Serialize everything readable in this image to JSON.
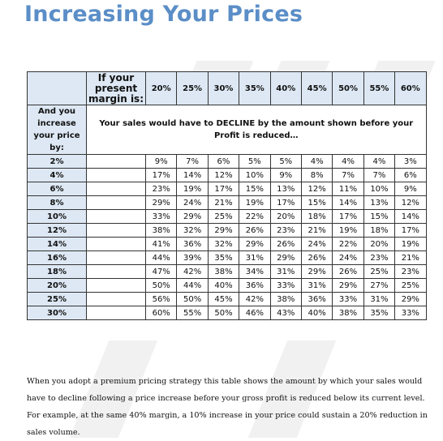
{
  "title": "Increasing Your Prices",
  "table": {
    "margin_header": "If your present margin is:",
    "margins": [
      "20%",
      "25%",
      "30%",
      "35%",
      "40%",
      "45%",
      "50%",
      "55%",
      "60%"
    ],
    "side_header": "And you increase your price by:",
    "message": "Your sales would have to DECLINE by the amount shown before your Profit is reduced…",
    "rows": [
      {
        "increase": "2%",
        "values": [
          "9%",
          "7%",
          "6%",
          "5%",
          "5%",
          "4%",
          "4%",
          "4%",
          "3%"
        ]
      },
      {
        "increase": "4%",
        "values": [
          "17%",
          "14%",
          "12%",
          "10%",
          "9%",
          "8%",
          "7%",
          "7%",
          "6%"
        ]
      },
      {
        "increase": "6%",
        "values": [
          "23%",
          "19%",
          "17%",
          "15%",
          "13%",
          "12%",
          "11%",
          "10%",
          "9%"
        ]
      },
      {
        "increase": "8%",
        "values": [
          "29%",
          "24%",
          "21%",
          "19%",
          "17%",
          "15%",
          "14%",
          "13%",
          "12%"
        ]
      },
      {
        "increase": "10%",
        "values": [
          "33%",
          "29%",
          "25%",
          "22%",
          "20%",
          "18%",
          "17%",
          "15%",
          "14%"
        ]
      },
      {
        "increase": "12%",
        "values": [
          "38%",
          "32%",
          "29%",
          "26%",
          "23%",
          "21%",
          "19%",
          "18%",
          "17%"
        ]
      },
      {
        "increase": "14%",
        "values": [
          "41%",
          "36%",
          "32%",
          "29%",
          "26%",
          "24%",
          "22%",
          "20%",
          "19%"
        ]
      },
      {
        "increase": "16%",
        "values": [
          "44%",
          "39%",
          "35%",
          "31%",
          "29%",
          "26%",
          "24%",
          "23%",
          "21%"
        ]
      },
      {
        "increase": "18%",
        "values": [
          "47%",
          "42%",
          "38%",
          "34%",
          "31%",
          "29%",
          "26%",
          "25%",
          "23%"
        ]
      },
      {
        "increase": "20%",
        "values": [
          "50%",
          "44%",
          "40%",
          "36%",
          "33%",
          "31%",
          "29%",
          "27%",
          "25%"
        ]
      },
      {
        "increase": "25%",
        "values": [
          "56%",
          "50%",
          "45%",
          "42%",
          "38%",
          "36%",
          "33%",
          "31%",
          "29%"
        ]
      },
      {
        "increase": "30%",
        "values": [
          "60%",
          "55%",
          "50%",
          "46%",
          "43%",
          "40%",
          "38%",
          "35%",
          "33%"
        ]
      }
    ]
  },
  "footnote": "When you adopt a premium pricing strategy this table shows the amount by which your sales would have to decline following a price increase before your gross profit is reduced below its current level. For example, at the same 40% margin, a 10% increase in your price could sustain a 20% reduction in sales volume.",
  "colors": {
    "title": "#5b8ec7",
    "header_fill": "#dde8f4"
  }
}
